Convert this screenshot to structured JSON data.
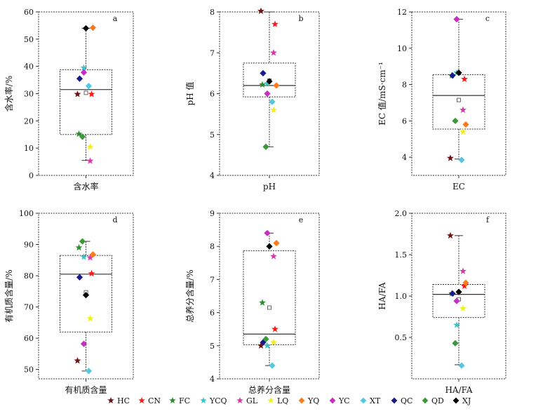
{
  "chart_data": [
    {
      "type": "box",
      "id": "a",
      "panel_label": "a",
      "xlabel": "含水率",
      "ylabel": "含水率/%",
      "ylim": [
        0,
        60
      ],
      "yticks": [
        0,
        10,
        20,
        30,
        40,
        50,
        60
      ],
      "box": {
        "q1": 15,
        "median": 31.5,
        "q3": 38.8,
        "whisker_low": 5.5,
        "whisker_high": 54,
        "mean": 30.3
      },
      "points": {
        "HC": 29.8,
        "CN": 29.8,
        "FC": 15.2,
        "YCQ": 39.5,
        "GL": 5.3,
        "LQ": 10.5,
        "YQ": 54.2,
        "YC": 37.8,
        "XT": 32.8,
        "QC": 35.5,
        "QD": 14.2,
        "XJ": 54
      }
    },
    {
      "type": "box",
      "id": "b",
      "panel_label": "b",
      "xlabel": "pH",
      "ylabel": "pH 值",
      "ylim": [
        4,
        8
      ],
      "yticks": [
        4,
        5,
        6,
        7,
        8
      ],
      "box": {
        "q1": 5.92,
        "median": 6.2,
        "q3": 6.75,
        "whisker_low": 4.7,
        "whisker_high": 8.0,
        "mean": 6.32
      },
      "points": {
        "HC": 8.02,
        "CN": 7.7,
        "FC": 6.22,
        "YCQ": 6.25,
        "GL": 7.0,
        "LQ": 5.6,
        "YQ": 6.2,
        "YC": 6.0,
        "XT": 5.8,
        "QC": 6.5,
        "QD": 4.7,
        "XJ": 6.3
      }
    },
    {
      "type": "box",
      "id": "c",
      "panel_label": "c",
      "xlabel": "EC",
      "ylabel": "EC 值/mS·cm⁻¹",
      "ylim": [
        3,
        12
      ],
      "yticks": [
        4,
        6,
        8,
        10,
        12
      ],
      "box": {
        "q1": 5.55,
        "median": 7.4,
        "q3": 8.55,
        "whisker_low": 3.9,
        "whisker_high": 11.6,
        "mean": 7.15
      },
      "points": {
        "HC": 3.95,
        "CN": 8.3,
        "FC": 8.5,
        "YCQ": 8.65,
        "GL": 6.6,
        "LQ": 5.4,
        "YQ": 5.8,
        "YC": 11.6,
        "XT": 3.85,
        "QC": 8.5,
        "QD": 6.0,
        "XJ": 8.65
      }
    },
    {
      "type": "box",
      "id": "d",
      "panel_label": "d",
      "xlabel": "有机质含量",
      "ylabel": "有机质含量/%",
      "ylim": [
        47,
        100
      ],
      "yticks": [
        50,
        60,
        70,
        80,
        90,
        100
      ],
      "box": {
        "q1": 62,
        "median": 80.5,
        "q3": 86.5,
        "whisker_low": 49.5,
        "whisker_high": 91,
        "mean": 74.7
      },
      "points": {
        "HC": 52.8,
        "CN": 80.7,
        "FC": 89,
        "YCQ": 86,
        "GL": 85.8,
        "LQ": 66.3,
        "YQ": 86.8,
        "YC": 58.2,
        "XT": 49.5,
        "QC": 79.5,
        "QD": 91,
        "XJ": 73.8
      }
    },
    {
      "type": "box",
      "id": "e",
      "panel_label": "e",
      "xlabel": "总养分含量",
      "ylabel": "总养分含量/%",
      "ylim": [
        4,
        9
      ],
      "yticks": [
        4,
        5,
        6,
        7,
        8,
        9
      ],
      "box": {
        "q1": 5.03,
        "median": 5.35,
        "q3": 7.87,
        "whisker_low": 4.4,
        "whisker_high": 8.4,
        "mean": 6.15
      },
      "points": {
        "HC": 5.0,
        "CN": 5.5,
        "FC": 6.3,
        "YCQ": 5.0,
        "GL": 7.7,
        "LQ": 5.1,
        "YQ": 8.1,
        "YC": 8.4,
        "XT": 4.4,
        "QC": 5.1,
        "QD": 5.2,
        "XJ": 8.0
      }
    },
    {
      "type": "box",
      "id": "f",
      "panel_label": "f",
      "xlabel": "HA/FA",
      "ylabel": "HA/FA",
      "ylim": [
        0,
        2.0
      ],
      "yticks": [
        0.5,
        1.0,
        1.5,
        2.0
      ],
      "ytick_labels": [
        "0.5",
        "1.0",
        "1.5",
        "2.0"
      ],
      "box": {
        "q1": 0.74,
        "median": 1.02,
        "q3": 1.14,
        "whisker_low": 0.17,
        "whisker_high": 1.73,
        "mean": 0.96
      },
      "points": {
        "HC": 1.73,
        "CN": 1.12,
        "FC": 1.03,
        "YCQ": 0.65,
        "GL": 1.3,
        "LQ": 0.85,
        "YQ": 1.16,
        "YC": 0.94,
        "XT": 0.16,
        "QC": 1.03,
        "QD": 0.43,
        "XJ": 1.05
      }
    }
  ],
  "legend": [
    {
      "name": "HC",
      "color": "#6b1414",
      "marker": "star"
    },
    {
      "name": "CN",
      "color": "#ff1a1a",
      "marker": "star"
    },
    {
      "name": "FC",
      "color": "#2e8b2e",
      "marker": "star"
    },
    {
      "name": "YCQ",
      "color": "#3cc5cf",
      "marker": "star"
    },
    {
      "name": "GL",
      "color": "#d63aa8",
      "marker": "star"
    },
    {
      "name": "LQ",
      "color": "#f0f020",
      "marker": "star"
    },
    {
      "name": "YQ",
      "color": "#ff7a1a",
      "marker": "diamond"
    },
    {
      "name": "YC",
      "color": "#c72dbf",
      "marker": "diamond"
    },
    {
      "name": "XT",
      "color": "#55c8e0",
      "marker": "diamond"
    },
    {
      "name": "QC",
      "color": "#1a1a8c",
      "marker": "diamond"
    },
    {
      "name": "QD",
      "color": "#3a9a3a",
      "marker": "diamond"
    },
    {
      "name": "XJ",
      "color": "#000000",
      "marker": "diamond"
    }
  ]
}
